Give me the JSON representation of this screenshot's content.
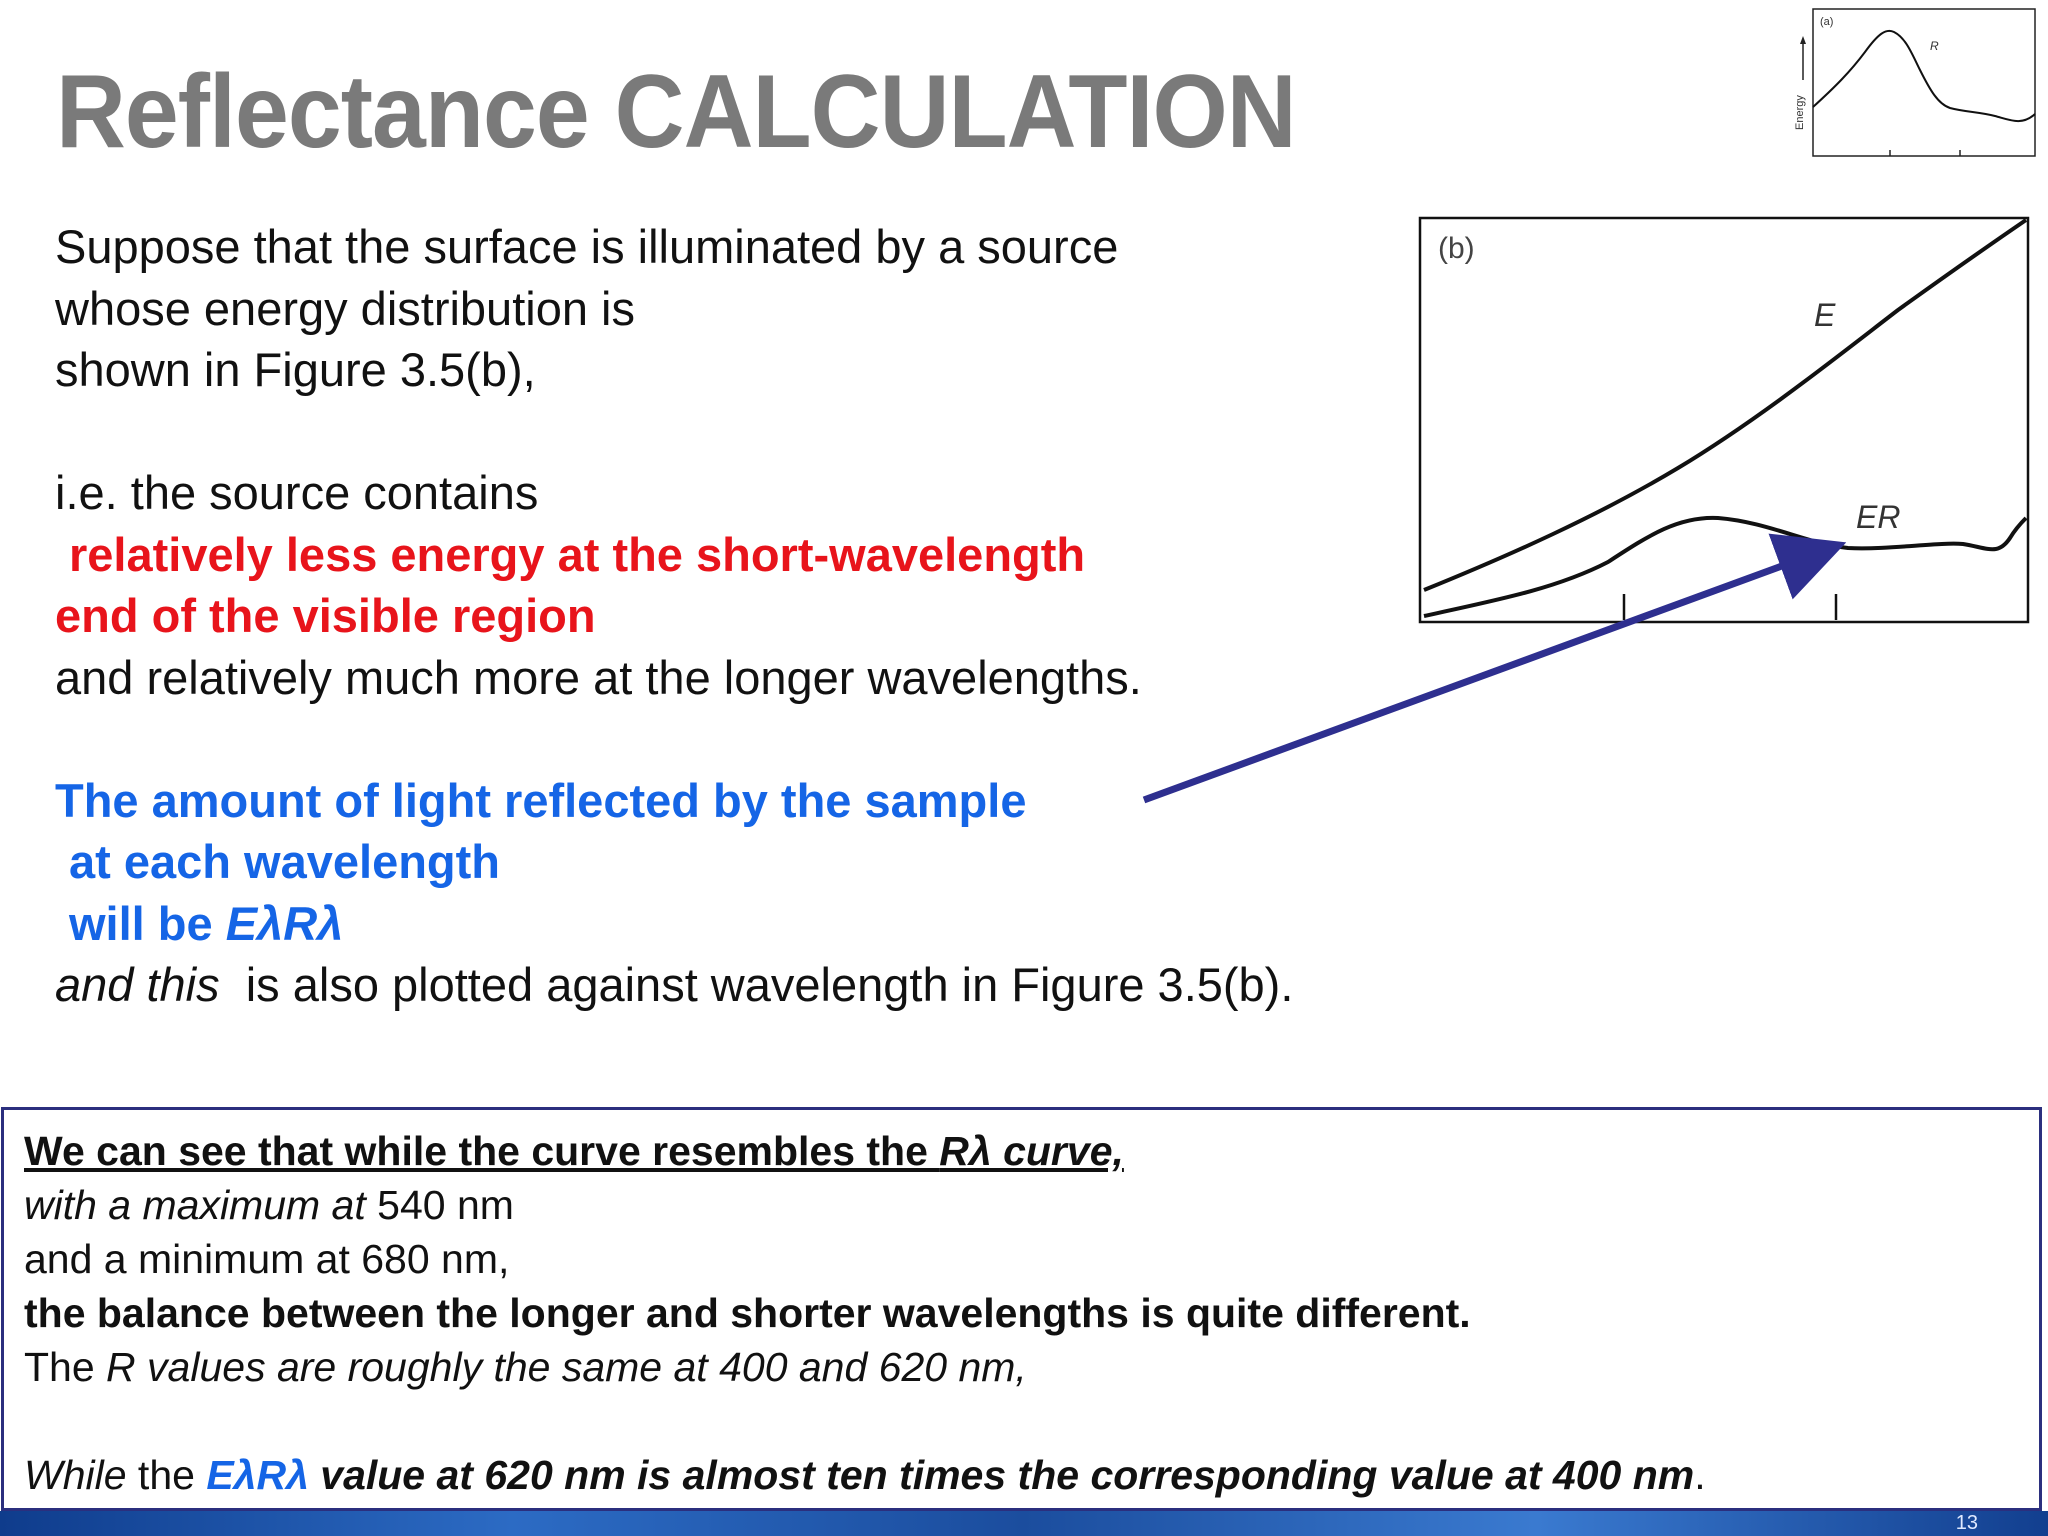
{
  "slide": {
    "title": "Reflectance CALCULATION",
    "page_number": "13"
  },
  "body": {
    "p1_l1": "Suppose that the surface is illuminated by a source",
    "p1_l2": "whose energy distribution is",
    "p1_l3": "shown in Figure 3.5(b),",
    "p2_l1": "i.e. the source contains",
    "p2_red_l1": "relatively less energy at the short-wavelength",
    "p2_red_l2": "end of the visible region",
    "p2_l4": "and relatively much more at the longer wavelengths.",
    "p3_blue_l1": "The amount of light reflected by the sample",
    "p3_blue_l2": "at each wavelength",
    "p3_blue_l3_a": "will be ",
    "p3_blue_l3_b": "EλRλ",
    "p3_l4_it": "and this",
    "p3_l4_rest": "  is also plotted against wavelength in Figure 3.5(b)."
  },
  "figure_a": {
    "panel_label": "(a)",
    "curve_label": "R",
    "y_axis_label": "Energy"
  },
  "figure_b": {
    "panel_label": "(b)",
    "curve_e_label": "E",
    "curve_er_label": "ER"
  },
  "summary": {
    "l1": "We can see that while the curve resembles the ",
    "l1_it": "Rλ curve,",
    "l2_it": "with a maximum at",
    "l2_rest": " 540 nm",
    "l3": "and a minimum at 680 nm,",
    "l4": "the balance between the longer and shorter wavelengths is quite different.",
    "l5_a": "The ",
    "l5_it": "R values are roughly the same at 400 and 620 nm,",
    "l7_it1": "While",
    "l7_a": " the ",
    "l7_blue": "EλRλ",
    "l7_bold_it": " value at 620 nm is almost ten times the corresponding value at 400 nm",
    "l7_end": "."
  },
  "colors": {
    "title": "#7a7a7a",
    "highlight_red": "#e8141b",
    "highlight_blue": "#1565e6",
    "arrow": "#2e2f8f",
    "box_border": "#2b2f7e"
  }
}
